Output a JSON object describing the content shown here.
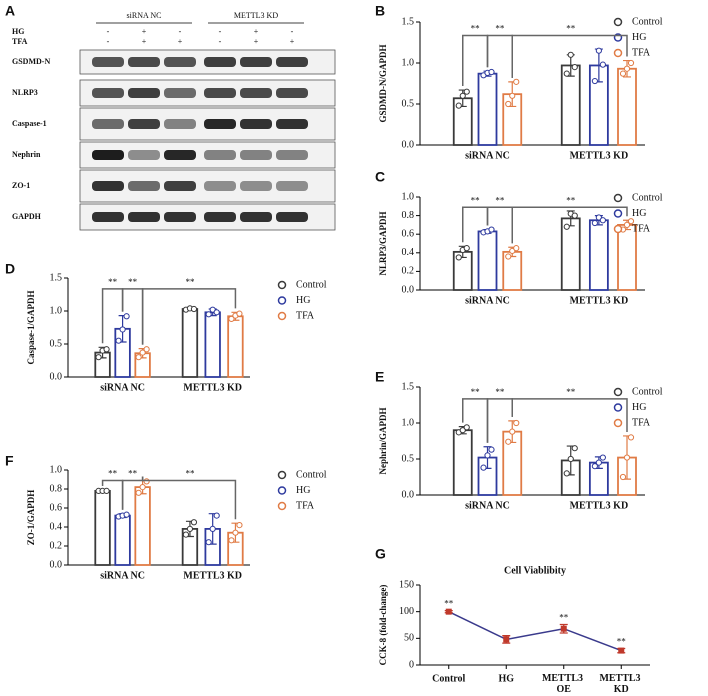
{
  "blot": {
    "label": "A",
    "groups": [
      "siRNA NC",
      "METTL3 KD"
    ],
    "rows": [
      {
        "name": "HG",
        "cells": [
          "-",
          "+",
          "-",
          "-",
          "+",
          "-"
        ]
      },
      {
        "name": "TFA",
        "cells": [
          "-",
          "+",
          "+",
          "-",
          "+",
          "+"
        ]
      }
    ],
    "bands": [
      "GSDMD-N",
      "NLRP3",
      "Caspase-1",
      "Nephrin",
      "ZO-1",
      "GAPDH"
    ]
  },
  "chart_data": [
    {
      "type": "bar",
      "label": "B",
      "ylabel": "GSDMD-N/GAPDH",
      "categories": [
        "siRNA NC",
        "METTL3 KD"
      ],
      "ylim": [
        0,
        1.5
      ],
      "yticks": [
        {
          "value": 0,
          "label": "0.0"
        },
        0.5,
        {
          "value": 1,
          "label": "1.0"
        },
        1.5
      ],
      "annotations": [
        "**",
        "**",
        "**"
      ],
      "series": [
        {
          "name": "Control",
          "color": "#3a3a3a",
          "values": [
            0.57,
            0.97
          ],
          "errors": [
            0.1,
            0.13
          ],
          "points": [
            [
              0.48,
              0.6,
              0.65
            ],
            [
              0.87,
              1.1,
              0.95
            ]
          ]
        },
        {
          "name": "HG",
          "color": "#2e3a9e",
          "values": [
            0.87,
            0.97
          ],
          "errors": [
            0.03,
            0.2
          ],
          "points": [
            [
              0.85,
              0.88,
              0.89
            ],
            [
              0.78,
              1.15,
              0.98
            ]
          ]
        },
        {
          "name": "TFA",
          "color": "#e07b45",
          "values": [
            0.62,
            0.93
          ],
          "errors": [
            0.15,
            0.1
          ],
          "points": [
            [
              0.5,
              0.6,
              0.77
            ],
            [
              0.87,
              0.93,
              1.0
            ]
          ]
        }
      ]
    },
    {
      "type": "bar",
      "label": "C",
      "ylabel": "NLRP3/GAPDH",
      "categories": [
        "siRNA NC",
        "METTL3 KD"
      ],
      "ylim": [
        0,
        1
      ],
      "yticks": [
        {
          "value": 0,
          "label": "0.0"
        },
        0.2,
        0.4,
        0.6,
        0.8,
        {
          "value": 1,
          "label": "1.0"
        }
      ],
      "annotations": [
        "**",
        "**",
        "**"
      ],
      "series": [
        {
          "name": "Control",
          "color": "#3a3a3a",
          "values": [
            0.41,
            0.77
          ],
          "errors": [
            0.06,
            0.08
          ],
          "points": [
            [
              0.35,
              0.43,
              0.45
            ],
            [
              0.68,
              0.82,
              0.8
            ]
          ]
        },
        {
          "name": "HG",
          "color": "#2e3a9e",
          "values": [
            0.63,
            0.75
          ],
          "errors": [
            0.02,
            0.05
          ],
          "points": [
            [
              0.62,
              0.63,
              0.65
            ],
            [
              0.72,
              0.78,
              0.75
            ]
          ]
        },
        {
          "name": "TFA",
          "color": "#e07b45",
          "values": [
            0.41,
            0.7
          ],
          "errors": [
            0.05,
            0.05
          ],
          "points": [
            [
              0.36,
              0.42,
              0.45
            ],
            [
              0.65,
              0.7,
              0.74
            ]
          ]
        }
      ]
    },
    {
      "type": "bar",
      "label": "D",
      "ylabel": "Caspase-1/GAPDH",
      "categories": [
        "siRNA NC",
        "METTL3 KD"
      ],
      "ylim": [
        0,
        1.5
      ],
      "yticks": [
        {
          "value": 0,
          "label": "0.0"
        },
        0.5,
        {
          "value": 1,
          "label": "1.0"
        },
        1.5
      ],
      "annotations": [
        "**",
        "**",
        "**"
      ],
      "series": [
        {
          "name": "Control",
          "color": "#3a3a3a",
          "values": [
            0.37,
            1.03
          ],
          "errors": [
            0.08,
            0.02
          ],
          "points": [
            [
              0.3,
              0.4,
              0.42
            ],
            [
              1.02,
              1.04,
              1.03
            ]
          ]
        },
        {
          "name": "HG",
          "color": "#2e3a9e",
          "values": [
            0.73,
            0.98
          ],
          "errors": [
            0.2,
            0.05
          ],
          "points": [
            [
              0.55,
              0.72,
              0.92
            ],
            [
              0.95,
              1.02,
              0.98
            ]
          ]
        },
        {
          "name": "TFA",
          "color": "#e07b45",
          "values": [
            0.36,
            0.92
          ],
          "errors": [
            0.07,
            0.06
          ],
          "points": [
            [
              0.3,
              0.37,
              0.42
            ],
            [
              0.88,
              0.93,
              0.96
            ]
          ]
        }
      ]
    },
    {
      "type": "bar",
      "label": "E",
      "ylabel": "Nephrin/GAPDH",
      "categories": [
        "siRNA NC",
        "METTL3 KD"
      ],
      "ylim": [
        0,
        1.5
      ],
      "yticks": [
        {
          "value": 0,
          "label": "0.0"
        },
        0.5,
        {
          "value": 1,
          "label": "1.0"
        },
        1.5
      ],
      "annotations": [
        "**",
        "**",
        "**"
      ],
      "series": [
        {
          "name": "Control",
          "color": "#3a3a3a",
          "values": [
            0.9,
            0.48
          ],
          "errors": [
            0.05,
            0.2
          ],
          "points": [
            [
              0.87,
              0.9,
              0.94
            ],
            [
              0.3,
              0.5,
              0.65
            ]
          ]
        },
        {
          "name": "HG",
          "color": "#2e3a9e",
          "values": [
            0.52,
            0.45
          ],
          "errors": [
            0.15,
            0.08
          ],
          "points": [
            [
              0.38,
              0.55,
              0.63
            ],
            [
              0.4,
              0.45,
              0.52
            ]
          ]
        },
        {
          "name": "TFA",
          "color": "#e07b45",
          "values": [
            0.88,
            0.52
          ],
          "errors": [
            0.15,
            0.3
          ],
          "points": [
            [
              0.74,
              0.88,
              1.0
            ],
            [
              0.25,
              0.52,
              0.8
            ]
          ]
        }
      ]
    },
    {
      "type": "bar",
      "label": "F",
      "ylabel": "ZO-1/GAPDH",
      "categories": [
        "siRNA NC",
        "METTL3 KD"
      ],
      "ylim": [
        0,
        1
      ],
      "yticks": [
        {
          "value": 0,
          "label": "0.0"
        },
        0.2,
        0.4,
        0.6,
        0.8,
        {
          "value": 1,
          "label": "1.0"
        }
      ],
      "annotations": [
        "**",
        "**",
        "**"
      ],
      "series": [
        {
          "name": "Control",
          "color": "#3a3a3a",
          "values": [
            0.78,
            0.38
          ],
          "errors": [
            0.01,
            0.08
          ],
          "points": [
            [
              0.78,
              0.78,
              0.78
            ],
            [
              0.32,
              0.38,
              0.45
            ]
          ]
        },
        {
          "name": "HG",
          "color": "#2e3a9e",
          "values": [
            0.52,
            0.38
          ],
          "errors": [
            0.02,
            0.16
          ],
          "points": [
            [
              0.51,
              0.52,
              0.53
            ],
            [
              0.24,
              0.38,
              0.52
            ]
          ]
        },
        {
          "name": "TFA",
          "color": "#e07b45",
          "values": [
            0.82,
            0.34
          ],
          "errors": [
            0.07,
            0.1
          ],
          "points": [
            [
              0.76,
              0.82,
              0.88
            ],
            [
              0.26,
              0.34,
              0.42
            ]
          ]
        }
      ]
    },
    {
      "type": "line",
      "label": "G",
      "title": "Cell Viablibity",
      "ylabel": "CCK-8 (fold-change)",
      "categories": [
        "Control",
        "HG",
        "METTL3 OE",
        "METTL3 KD"
      ],
      "ylim": [
        0,
        150
      ],
      "yticks": [
        0,
        50,
        100,
        150
      ],
      "annotations": [
        "**",
        null,
        "**",
        "**"
      ],
      "series": [
        {
          "color": "#3a3a8c",
          "marker_color": "#c0392b",
          "values": [
            100,
            48,
            68,
            27
          ],
          "errors": [
            2,
            7,
            8,
            4
          ]
        }
      ]
    }
  ]
}
